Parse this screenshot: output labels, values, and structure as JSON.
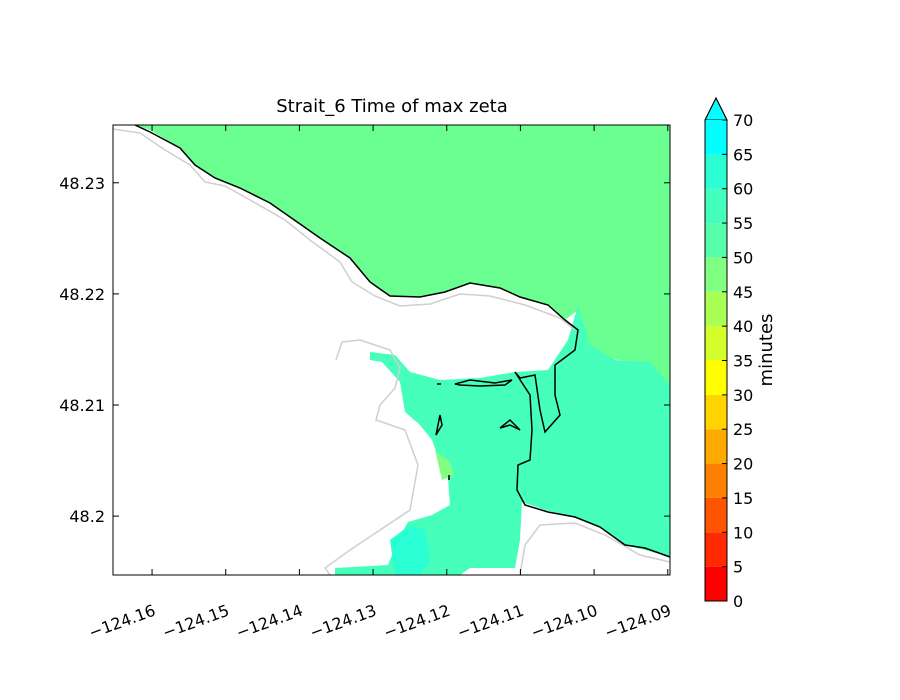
{
  "chart_data": {
    "type": "map",
    "title": "Strait_6 Time of max zeta",
    "xlim": [
      -124.1653,
      -124.0897
    ],
    "ylim": [
      48.1947,
      48.2352
    ],
    "xticks": [
      {
        "value": -124.16,
        "label": "−124.16"
      },
      {
        "value": -124.15,
        "label": "−124.15"
      },
      {
        "value": -124.14,
        "label": "−124.14"
      },
      {
        "value": -124.13,
        "label": "−124.13"
      },
      {
        "value": -124.12,
        "label": "−124.12"
      },
      {
        "value": -124.11,
        "label": "−124.11"
      },
      {
        "value": -124.1,
        "label": "−124.10"
      },
      {
        "value": -124.09,
        "label": "−124.09"
      }
    ],
    "yticks": [
      48.2,
      48.21,
      48.22,
      48.23
    ],
    "colorbar": {
      "label": "minutes",
      "levels": [
        0,
        5,
        10,
        15,
        20,
        25,
        30,
        35,
        40,
        45,
        50,
        55,
        60,
        65,
        70
      ],
      "colors": [
        "#ff0000",
        "#ff2a00",
        "#ff5500",
        "#ff7f00",
        "#ffaa00",
        "#ffd400",
        "#ffff00",
        "#d4ff2a",
        "#aaff55",
        "#80ff80",
        "#55ffaa",
        "#44ffbb",
        "#2affd4",
        "#00ffff"
      ],
      "extend_color": "#00ffff"
    }
  }
}
